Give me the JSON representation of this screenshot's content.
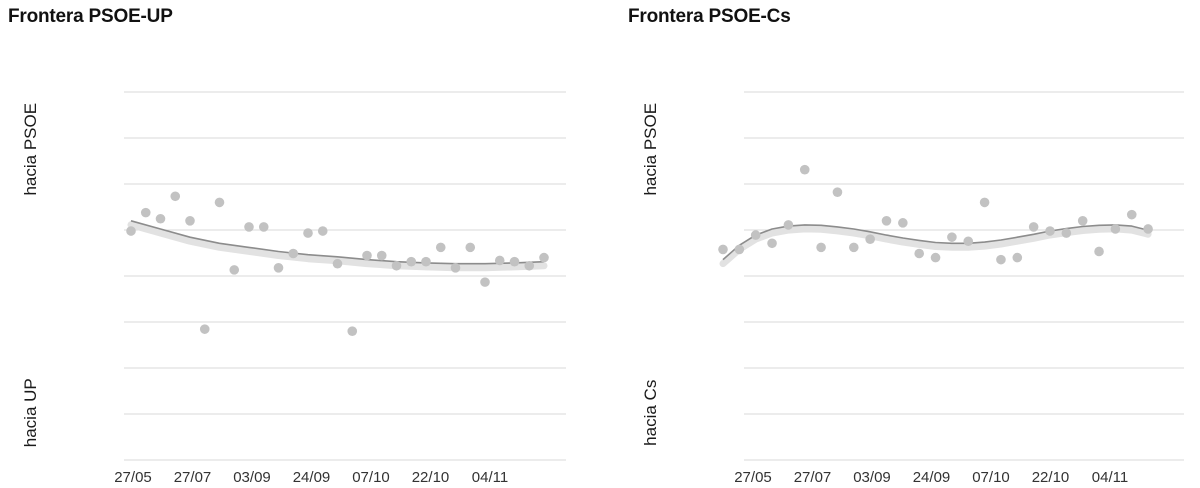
{
  "chart_data": [
    {
      "type": "scatter",
      "title": "Frontera PSOE-UP",
      "ylabel_top": "hacia PSOE",
      "ylabel_bottom": "hacia UP",
      "xtick_labels": [
        "27/05",
        "27/07",
        "03/09",
        "24/09",
        "07/10",
        "22/10",
        "04/11"
      ],
      "ylim": [
        -5,
        4
      ],
      "grid": true,
      "point_color": "#c2c2c2",
      "trend_color": "#8c8c8c",
      "points": [
        [
          0,
          0.6
        ],
        [
          1,
          1.05
        ],
        [
          2,
          0.9
        ],
        [
          3,
          1.45
        ],
        [
          4,
          0.85
        ],
        [
          5,
          -1.8
        ],
        [
          6,
          1.3
        ],
        [
          7,
          -0.35
        ],
        [
          8,
          0.7
        ],
        [
          9,
          0.7
        ],
        [
          10,
          -0.3
        ],
        [
          11,
          0.05
        ],
        [
          12,
          0.55
        ],
        [
          13,
          0.6
        ],
        [
          14,
          -0.2
        ],
        [
          15,
          -1.85
        ],
        [
          16,
          0.0
        ],
        [
          17,
          0.0
        ],
        [
          18,
          -0.25
        ],
        [
          19,
          -0.15
        ],
        [
          20,
          -0.15
        ],
        [
          21,
          0.2
        ],
        [
          22,
          -0.3
        ],
        [
          23,
          0.2
        ],
        [
          24,
          -0.65
        ],
        [
          25,
          -0.12
        ],
        [
          26,
          -0.15
        ],
        [
          27,
          -0.25
        ],
        [
          28,
          -0.05
        ]
      ],
      "trend": [
        [
          0,
          0.85
        ],
        [
          2,
          0.65
        ],
        [
          4,
          0.45
        ],
        [
          6,
          0.3
        ],
        [
          8,
          0.2
        ],
        [
          10,
          0.1
        ],
        [
          12,
          0.02
        ],
        [
          14,
          -0.03
        ],
        [
          16,
          -0.1
        ],
        [
          18,
          -0.15
        ],
        [
          20,
          -0.18
        ],
        [
          22,
          -0.2
        ],
        [
          24,
          -0.2
        ],
        [
          26,
          -0.18
        ],
        [
          28,
          -0.15
        ]
      ]
    },
    {
      "type": "scatter",
      "title": "Frontera PSOE-Cs",
      "ylabel_top": "hacia PSOE",
      "ylabel_bottom": "hacia Cs",
      "xtick_labels": [
        "27/05",
        "27/07",
        "03/09",
        "24/09",
        "07/10",
        "22/10",
        "04/11"
      ],
      "ylim": [
        -5,
        4
      ],
      "grid": true,
      "point_color": "#c2c2c2",
      "trend_color": "#8c8c8c",
      "points": [
        [
          0,
          0.15
        ],
        [
          1,
          0.15
        ],
        [
          2,
          0.5
        ],
        [
          3,
          0.3
        ],
        [
          4,
          0.75
        ],
        [
          5,
          2.1
        ],
        [
          6,
          0.2
        ],
        [
          7,
          1.55
        ],
        [
          8,
          0.2
        ],
        [
          9,
          0.4
        ],
        [
          10,
          0.85
        ],
        [
          11,
          0.8
        ],
        [
          12,
          0.05
        ],
        [
          13,
          -0.05
        ],
        [
          14,
          0.45
        ],
        [
          15,
          0.35
        ],
        [
          16,
          1.3
        ],
        [
          17,
          -0.1
        ],
        [
          18,
          -0.05
        ],
        [
          19,
          0.7
        ],
        [
          20,
          0.6
        ],
        [
          21,
          0.55
        ],
        [
          22,
          0.85
        ],
        [
          23,
          0.1
        ],
        [
          24,
          0.65
        ],
        [
          25,
          1.0
        ],
        [
          26,
          0.65
        ]
      ],
      "trend": [
        [
          0,
          -0.1
        ],
        [
          1,
          0.25
        ],
        [
          2,
          0.5
        ],
        [
          3,
          0.65
        ],
        [
          4,
          0.72
        ],
        [
          5,
          0.75
        ],
        [
          6,
          0.74
        ],
        [
          7,
          0.7
        ],
        [
          8,
          0.65
        ],
        [
          9,
          0.58
        ],
        [
          10,
          0.5
        ],
        [
          11,
          0.43
        ],
        [
          12,
          0.37
        ],
        [
          13,
          0.32
        ],
        [
          14,
          0.3
        ],
        [
          15,
          0.3
        ],
        [
          16,
          0.33
        ],
        [
          17,
          0.38
        ],
        [
          18,
          0.45
        ],
        [
          19,
          0.52
        ],
        [
          20,
          0.6
        ],
        [
          21,
          0.66
        ],
        [
          22,
          0.71
        ],
        [
          23,
          0.74
        ],
        [
          24,
          0.75
        ],
        [
          25,
          0.72
        ],
        [
          26,
          0.62
        ]
      ]
    }
  ]
}
